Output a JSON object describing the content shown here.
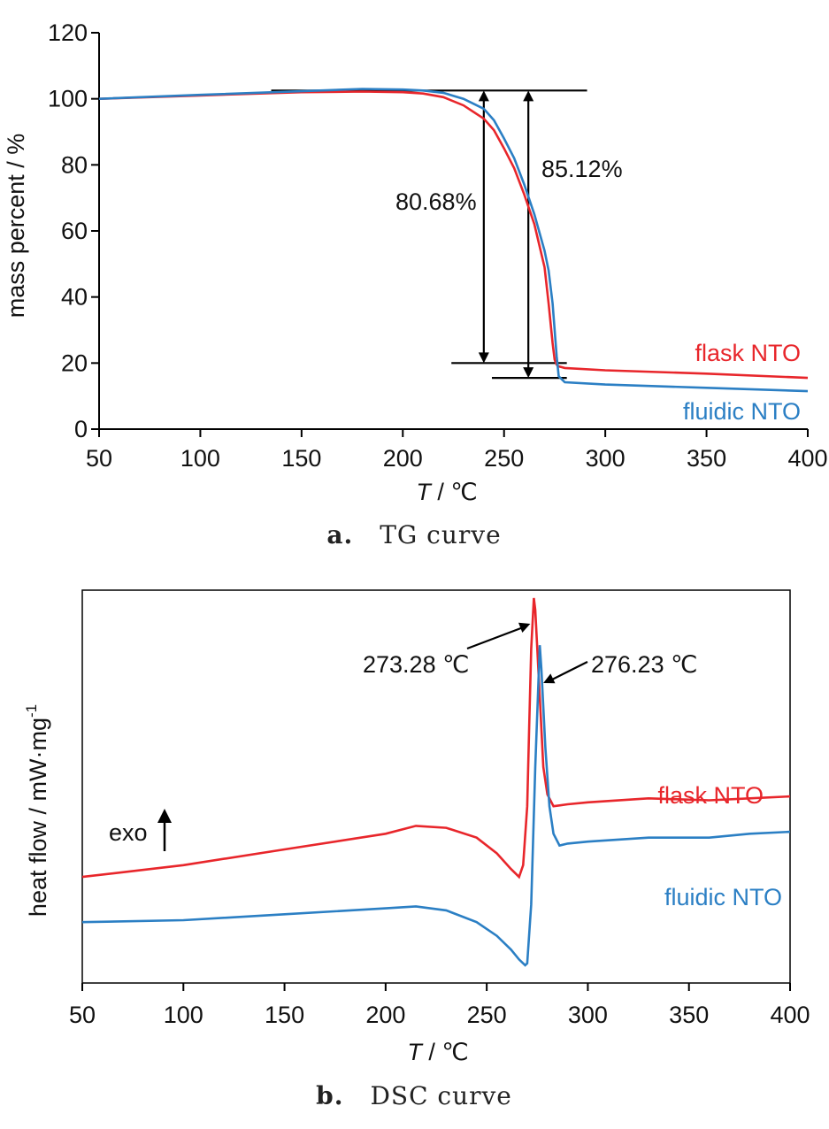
{
  "colors": {
    "flask": "#e8262b",
    "fluidic": "#2b7fc4"
  },
  "chart_data": [
    {
      "type": "line",
      "caption_letter": "a.",
      "caption_text": "TG curve",
      "xlabel_var": "T",
      "xlabel_unit": " / ℃",
      "ylabel": "mass percent / %",
      "xlim": [
        50,
        400
      ],
      "ylim": [
        0,
        120
      ],
      "xticks": [
        "50",
        "100",
        "150",
        "200",
        "250",
        "300",
        "350",
        "400"
      ],
      "yticks": [
        "0",
        "20",
        "40",
        "60",
        "80",
        "100",
        "120"
      ],
      "series": [
        {
          "name": "flask NTO",
          "x": [
            50,
            100,
            150,
            180,
            200,
            210,
            220,
            230,
            240,
            245,
            250,
            255,
            260,
            265,
            270,
            272,
            274,
            275,
            276,
            277,
            280,
            300,
            350,
            400
          ],
          "y": [
            100,
            101,
            102,
            102.2,
            102,
            101.6,
            100.5,
            98,
            94,
            90.5,
            85,
            79,
            71,
            62,
            49,
            38,
            26,
            21,
            19.5,
            19,
            18.5,
            17.8,
            16.8,
            15.5
          ]
        },
        {
          "name": "fluidic NTO",
          "x": [
            50,
            100,
            150,
            180,
            200,
            210,
            220,
            230,
            240,
            245,
            250,
            255,
            260,
            265,
            270,
            272,
            274,
            275,
            276,
            277,
            280,
            300,
            350,
            400
          ],
          "y": [
            100,
            101.2,
            102.3,
            103,
            102.8,
            102.5,
            101.8,
            100,
            97,
            93.5,
            88,
            82,
            74,
            65,
            54,
            48,
            38,
            30,
            22,
            16,
            14.2,
            13.5,
            12.5,
            11.5
          ]
        }
      ],
      "annotations": [
        {
          "text": "80.68%",
          "x": 240,
          "from": 102.5,
          "to": 20
        },
        {
          "text": "85.12%",
          "x": 262,
          "from": 102.5,
          "to": 15.5
        }
      ],
      "reference_lines": [
        {
          "y": 102.5,
          "x": [
            135,
            291
          ]
        },
        {
          "y": 20,
          "x": [
            224,
            281
          ]
        },
        {
          "y": 15.5,
          "x": [
            244,
            281
          ]
        }
      ]
    },
    {
      "type": "line",
      "caption_letter": "b.",
      "caption_text": "DSC curve",
      "xlabel_var": "T",
      "xlabel_unit": " / ℃",
      "ylabel": "heat flow / mW·mg",
      "ylabel_sup": "-1",
      "xlim": [
        50,
        400
      ],
      "xticks": [
        "50",
        "100",
        "150",
        "200",
        "250",
        "300",
        "350",
        "400"
      ],
      "exo_label": "exo",
      "series": [
        {
          "name": "flask NTO",
          "x": [
            50,
            100,
            150,
            200,
            215,
            230,
            245,
            255,
            262,
            266,
            268,
            270,
            271,
            272,
            273.28,
            274,
            276,
            278,
            280,
            283,
            290,
            300,
            330,
            360,
            380,
            400
          ],
          "y": [
            0.27,
            0.3,
            0.34,
            0.38,
            0.4,
            0.395,
            0.37,
            0.33,
            0.29,
            0.27,
            0.3,
            0.45,
            0.65,
            0.85,
            0.98,
            0.95,
            0.75,
            0.55,
            0.48,
            0.45,
            0.455,
            0.46,
            0.47,
            0.465,
            0.47,
            0.475
          ]
        },
        {
          "name": "fluidic NTO",
          "x": [
            50,
            100,
            150,
            200,
            215,
            230,
            245,
            255,
            262,
            266,
            269,
            270,
            272,
            274,
            276.23,
            277,
            279,
            281,
            283,
            286,
            290,
            300,
            330,
            360,
            380,
            400
          ],
          "y": [
            0.155,
            0.16,
            0.175,
            0.19,
            0.195,
            0.185,
            0.155,
            0.12,
            0.085,
            0.06,
            0.045,
            0.05,
            0.2,
            0.55,
            0.86,
            0.8,
            0.6,
            0.45,
            0.38,
            0.35,
            0.355,
            0.36,
            0.37,
            0.37,
            0.38,
            0.385
          ]
        }
      ],
      "annotations": [
        {
          "text": "273.28 ℃",
          "x": 273.28
        },
        {
          "text": "276.23 ℃",
          "x": 276.23
        }
      ]
    }
  ]
}
